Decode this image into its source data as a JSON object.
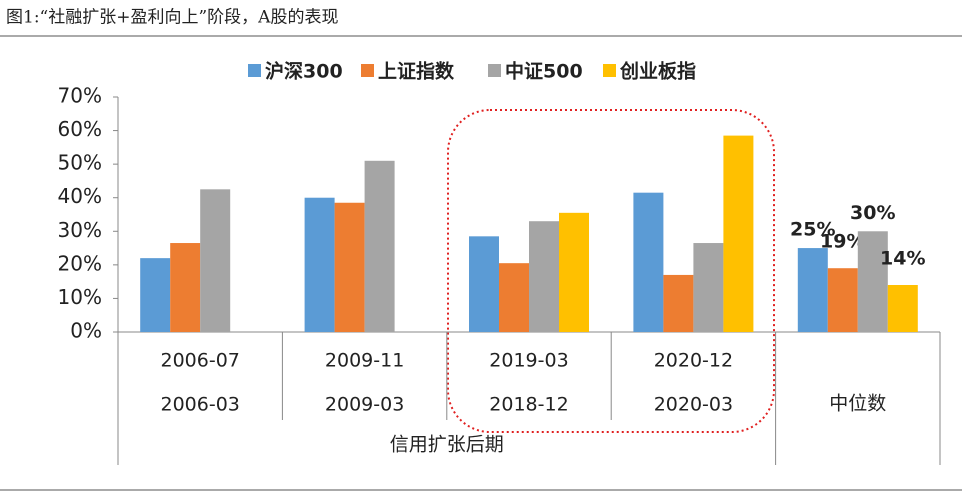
{
  "chart_data": {
    "type": "bar",
    "title": "图1:“社融扩张+盈利向上”阶段，A股的表现",
    "categories": [
      "2006-07",
      "2009-11",
      "2019-03",
      "2020-12",
      "中位数"
    ],
    "sub_categories": [
      "2006-03",
      "2009-03",
      "2018-12",
      "2020-03",
      null
    ],
    "group_label": "信用扩张后期",
    "series": [
      {
        "name": "沪深300",
        "color": "#5b9bd5",
        "values": [
          22,
          40,
          28.5,
          41.5,
          25
        ],
        "value_labels": [
          null,
          null,
          null,
          null,
          "25%"
        ]
      },
      {
        "name": "上证指数",
        "color": "#ed7d31",
        "values": [
          26.5,
          38.5,
          20.5,
          17,
          19
        ],
        "value_labels": [
          null,
          null,
          null,
          null,
          "19%"
        ]
      },
      {
        "name": "中证500",
        "color": "#a5a5a5",
        "values": [
          42.5,
          51,
          33,
          26.5,
          30
        ],
        "value_labels": [
          null,
          null,
          null,
          null,
          "30%"
        ]
      },
      {
        "name": "创业板指",
        "color": "#ffc000",
        "values": [
          null,
          null,
          35.5,
          58.5,
          14
        ],
        "value_labels": [
          null,
          null,
          null,
          null,
          "14%"
        ]
      }
    ],
    "ylim": [
      0,
      70
    ],
    "yticks": [
      {
        "value": 0,
        "label": "0%"
      },
      {
        "value": 10,
        "label": "10%"
      },
      {
        "value": 20,
        "label": "20%"
      },
      {
        "value": 30,
        "label": "30%"
      },
      {
        "value": 40,
        "label": "40%"
      },
      {
        "value": 50,
        "label": "50%"
      },
      {
        "value": 60,
        "label": "60%"
      },
      {
        "value": 70,
        "label": "70%"
      }
    ],
    "legend": "top"
  }
}
